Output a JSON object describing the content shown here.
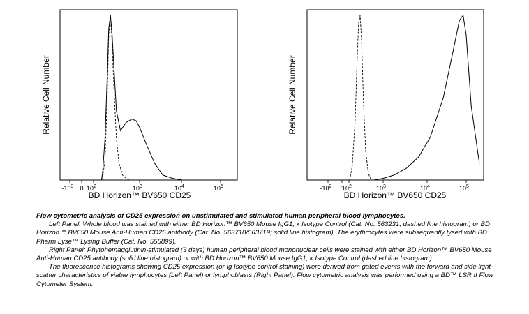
{
  "chart_data": [
    {
      "type": "line",
      "panel": "left",
      "xlabel": "BD Horizon™ BV650 CD25",
      "ylabel": "Relative Cell Number",
      "x_scale": "biexponential",
      "x_tick_labels": [
        {
          "base": "-10",
          "exp": "3"
        },
        {
          "base": "0",
          "exp": ""
        },
        {
          "base": "10",
          "exp": "2"
        },
        {
          "base": "10",
          "exp": "3"
        },
        {
          "base": "10",
          "exp": "4"
        },
        {
          "base": "10",
          "exp": "5"
        }
      ],
      "series": [
        {
          "style": "dashed",
          "x": [
            -10,
            0,
            20,
            40,
            60,
            80,
            100,
            130,
            170,
            220,
            300,
            400,
            500
          ],
          "y": [
            0,
            2,
            12,
            45,
            88,
            100,
            85,
            55,
            25,
            10,
            3,
            1,
            0
          ]
        },
        {
          "style": "solid",
          "x": [
            -10,
            0,
            20,
            40,
            60,
            80,
            100,
            130,
            170,
            250,
            400,
            600,
            800,
            1000,
            1500,
            2500,
            4000,
            7000,
            12000
          ],
          "y": [
            0,
            5,
            25,
            58,
            92,
            100,
            90,
            68,
            42,
            30,
            35,
            37,
            36,
            32,
            22,
            10,
            3,
            1,
            0
          ]
        }
      ]
    },
    {
      "type": "line",
      "panel": "right",
      "xlabel": "BD Horizon™ BV650 CD25",
      "ylabel": "Relative Cell Number",
      "x_scale": "biexponential",
      "x_tick_labels": [
        {
          "base": "-10",
          "exp": "2"
        },
        {
          "base": "0",
          "exp": ""
        },
        {
          "base": "10",
          "exp": "2"
        },
        {
          "base": "10",
          "exp": "3"
        },
        {
          "base": "10",
          "exp": "4"
        },
        {
          "base": "10",
          "exp": "5"
        }
      ],
      "series": [
        {
          "style": "dashed",
          "x": [
            -100,
            -50,
            0,
            30,
            60,
            90,
            120,
            160,
            220,
            300,
            400
          ],
          "y": [
            0,
            8,
            35,
            70,
            95,
            100,
            85,
            50,
            18,
            4,
            0
          ]
        },
        {
          "style": "solid",
          "x": [
            500,
            1000,
            2000,
            4000,
            8000,
            15000,
            30000,
            50000,
            70000,
            85000,
            100000,
            130000,
            200000
          ],
          "y": [
            0,
            1,
            3,
            7,
            14,
            26,
            50,
            78,
            97,
            100,
            88,
            45,
            10
          ]
        }
      ]
    }
  ],
  "caption": {
    "title": "Flow cytometric analysis of CD25 expression on unstimulated and stimulated human peripheral blood lymphocytes.",
    "p1": "Left Panel: Whole blood was stained with either BD Horizon™ BV650 Mouse IgG1, κ Isotype Control (Cat. No. 563231; dashed line histogram) or BD Horizon™ BV650 Mouse Anti-Human CD25 antibody (Cat. No. 563718/563719; solid line histogram). The erythrocytes were subsequently lysed with BD Pharm Lyse™ Lysing Buffer (Cat. No. 555899).",
    "p2": "Right Panel: Phytohemagglutinin-stimulated (3 days) human peripheral blood mononuclear cells were stained with either BD Horizon™ BV650 Mouse Anti-Human CD25 antibody (solid line histogram) or with BD Horizon™ BV650 Mouse IgG1, κ Isotype Control (dashed line histogram).",
    "p3": "The fluorescence histograms showing CD25 expression (or Ig Isotype control staining) were derived from gated events with the forward and side light-scatter characteristics of viable lymphocytes (Left Panel) or lymphoblasts (Right Panel). Flow cytometric analysis was performed using a BD™ LSR II Flow Cytometer System."
  }
}
